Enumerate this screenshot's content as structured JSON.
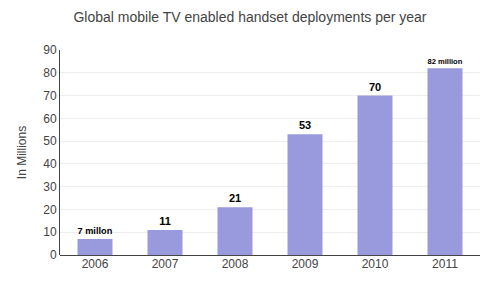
{
  "chart_data": {
    "type": "bar",
    "title": "Global mobile TV enabled handset deployments per year",
    "ylabel": "In Millions",
    "categories": [
      "2006",
      "2007",
      "2008",
      "2009",
      "2010",
      "2011"
    ],
    "values": [
      7,
      11,
      21,
      53,
      70,
      82
    ],
    "value_labels": [
      "7 millon",
      "11",
      "21",
      "53",
      "70",
      "82 million"
    ],
    "data_labels": true,
    "color": "#9999dd",
    "ylim": [
      0,
      90
    ],
    "yticks": [
      0,
      10,
      20,
      30,
      40,
      50,
      60,
      70,
      80,
      90
    ],
    "grid": true
  }
}
